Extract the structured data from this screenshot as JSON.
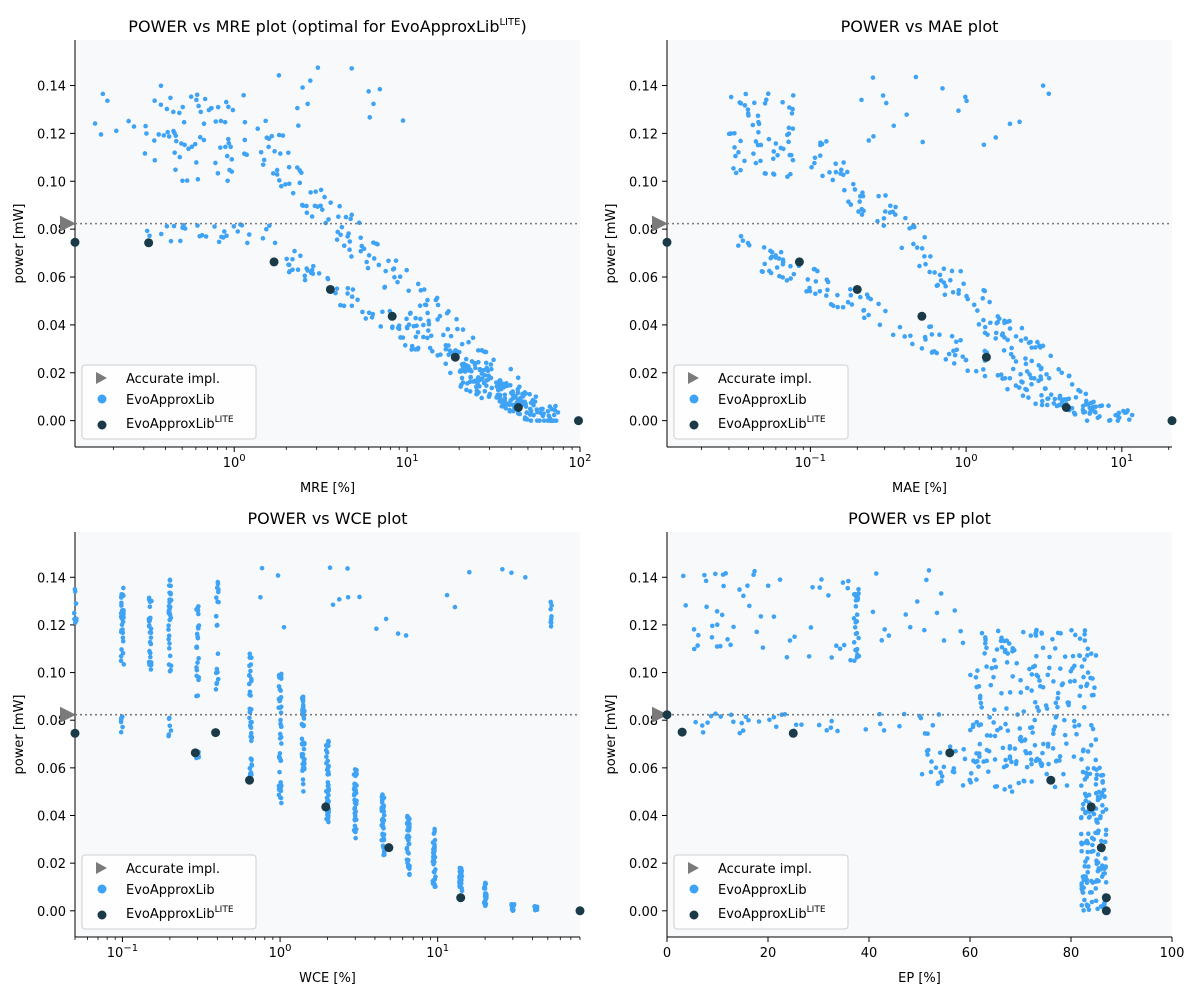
{
  "figure": {
    "rows": 2,
    "cols": 2
  },
  "colors": {
    "evo": "#3ea3f5",
    "lite": "#1a3a48",
    "accurate": "#7a7a7a",
    "panel_bg": "#f7f9fb",
    "refline": "#7a7a7a"
  },
  "chart_data": [
    {
      "id": "mre",
      "type": "scatter",
      "title": "POWER vs MRE plot (optimal for EvoApproxLib",
      "title_sup": "LITE",
      "title_end": ")",
      "xlabel": "MRE [%]",
      "ylabel": "power [mW]",
      "xscale": "log",
      "xlim": [
        0.12,
        100
      ],
      "ylim": [
        -0.011,
        0.159
      ],
      "xticks": [
        {
          "v": 1,
          "b": "10",
          "e": "0"
        },
        {
          "v": 10,
          "b": "10",
          "e": "1"
        },
        {
          "v": 100,
          "b": "10",
          "e": "2"
        }
      ],
      "yticks": [
        "0.00",
        "0.02",
        "0.04",
        "0.06",
        "0.08",
        "0.10",
        "0.12",
        "0.14"
      ],
      "accurate_power": 0.0823,
      "lite_points": [
        [
          0.12,
          0.0745
        ],
        [
          0.32,
          0.0743
        ],
        [
          1.7,
          0.0663
        ],
        [
          3.6,
          0.0548
        ],
        [
          8.2,
          0.0436
        ],
        [
          19,
          0.0265
        ],
        [
          44,
          0.0055
        ],
        [
          98,
          0.0
        ]
      ],
      "evo_clusters": [
        {
          "n": 20,
          "x": [
            0.13,
            0.7
          ],
          "y": [
            0.11,
            0.14
          ]
        },
        {
          "n": 60,
          "x": [
            0.3,
            1.6
          ],
          "y": [
            0.1,
            0.136
          ]
        },
        {
          "n": 15,
          "x": [
            1.5,
            11
          ],
          "y": [
            0.115,
            0.148
          ]
        },
        {
          "n": 30,
          "x": [
            0.3,
            1.8
          ],
          "y": [
            0.074,
            0.082
          ]
        },
        {
          "n": 160,
          "trend": true,
          "x": [
            1.4,
            60
          ],
          "y0": 0.115,
          "y1": 0.0,
          "jit": 0.009
        },
        {
          "n": 110,
          "trend": true,
          "x": [
            2,
            50
          ],
          "y0": 0.068,
          "y1": 0.005,
          "jit": 0.006
        },
        {
          "n": 120,
          "trend": true,
          "x": [
            20,
            75
          ],
          "y0": 0.02,
          "y1": 0.0,
          "jit": 0.006
        }
      ],
      "legend": {
        "accurate": "Accurate impl.",
        "evo": "EvoApproxLib",
        "lite": "EvoApproxLib",
        "lite_sup": "LITE"
      }
    },
    {
      "id": "mae",
      "type": "scatter",
      "title": "POWER vs MAE plot",
      "title_sup": "",
      "title_end": "",
      "xlabel": "MAE [%]",
      "ylabel": "power [mW]",
      "xscale": "log",
      "xlim": [
        0.012,
        21
      ],
      "ylim": [
        -0.011,
        0.159
      ],
      "xticks": [
        {
          "v": 0.1,
          "b": "10",
          "e": "−1"
        },
        {
          "v": 1,
          "b": "10",
          "e": "0"
        },
        {
          "v": 10,
          "b": "10",
          "e": "1"
        }
      ],
      "yticks": [
        "0.00",
        "0.02",
        "0.04",
        "0.06",
        "0.08",
        "0.10",
        "0.12",
        "0.14"
      ],
      "accurate_power": 0.0823,
      "lite_points": [
        [
          0.012,
          0.0745
        ],
        [
          0.085,
          0.0663
        ],
        [
          0.2,
          0.0548
        ],
        [
          0.52,
          0.0436
        ],
        [
          1.35,
          0.0265
        ],
        [
          4.4,
          0.0055
        ],
        [
          21,
          0.0
        ]
      ],
      "evo_clusters": [
        {
          "n": 60,
          "x": [
            0.03,
            0.08
          ],
          "y": [
            0.1,
            0.138
          ]
        },
        {
          "n": 20,
          "x": [
            0.2,
            4
          ],
          "y": [
            0.115,
            0.146
          ]
        },
        {
          "n": 150,
          "trend": true,
          "x": [
            0.1,
            6
          ],
          "y0": 0.115,
          "y1": 0.005,
          "jit": 0.009
        },
        {
          "n": 120,
          "trend": true,
          "x": [
            0.03,
            3
          ],
          "y0": 0.075,
          "y1": 0.012,
          "jit": 0.006
        },
        {
          "n": 60,
          "trend": true,
          "x": [
            3,
            12
          ],
          "y0": 0.01,
          "y1": 0.0,
          "jit": 0.004
        }
      ],
      "legend": {
        "accurate": "Accurate impl.",
        "evo": "EvoApproxLib",
        "lite": "EvoApproxLib",
        "lite_sup": "LITE"
      }
    },
    {
      "id": "wce",
      "type": "scatter",
      "title": "POWER vs WCE plot",
      "title_sup": "",
      "title_end": "",
      "xlabel": "WCE [%]",
      "ylabel": "power [mW]",
      "xscale": "log",
      "xlim": [
        0.05,
        80
      ],
      "ylim": [
        -0.011,
        0.159
      ],
      "xticks": [
        {
          "v": 0.1,
          "b": "10",
          "e": "−1"
        },
        {
          "v": 1,
          "b": "10",
          "e": "0"
        },
        {
          "v": 10,
          "b": "10",
          "e": "1"
        }
      ],
      "yticks": [
        "0.00",
        "0.02",
        "0.04",
        "0.06",
        "0.08",
        "0.10",
        "0.12",
        "0.14"
      ],
      "accurate_power": 0.0823,
      "lite_points": [
        [
          0.05,
          0.0745
        ],
        [
          0.29,
          0.0663
        ],
        [
          0.39,
          0.0748
        ],
        [
          0.64,
          0.0548
        ],
        [
          1.95,
          0.0436
        ],
        [
          4.9,
          0.0265
        ],
        [
          14,
          0.0055
        ],
        [
          80,
          0.0
        ]
      ],
      "evo_columns": [
        {
          "x": 0.05,
          "y": [
            0.118,
            0.135
          ],
          "n": 8
        },
        {
          "x": 0.1,
          "y": [
            0.1,
            0.137
          ],
          "n": 30
        },
        {
          "x": 0.15,
          "y": [
            0.1,
            0.136
          ],
          "n": 30
        },
        {
          "x": 0.2,
          "y": [
            0.1,
            0.139
          ],
          "n": 30
        },
        {
          "x": 0.3,
          "y": [
            0.09,
            0.128
          ],
          "n": 25
        },
        {
          "x": 0.4,
          "y": [
            0.09,
            0.138
          ],
          "n": 20
        },
        {
          "x": 0.65,
          "y": [
            0.055,
            0.11
          ],
          "n": 40
        },
        {
          "x": 1,
          "y": [
            0.045,
            0.1
          ],
          "n": 45
        },
        {
          "x": 1.4,
          "y": [
            0.05,
            0.09
          ],
          "n": 45
        },
        {
          "x": 2,
          "y": [
            0.035,
            0.075
          ],
          "n": 45
        },
        {
          "x": 3,
          "y": [
            0.03,
            0.06
          ],
          "n": 40
        },
        {
          "x": 4.5,
          "y": [
            0.022,
            0.05
          ],
          "n": 40
        },
        {
          "x": 6.5,
          "y": [
            0.015,
            0.04
          ],
          "n": 40
        },
        {
          "x": 9.5,
          "y": [
            0.01,
            0.035
          ],
          "n": 40
        },
        {
          "x": 14,
          "y": [
            0.005,
            0.018
          ],
          "n": 35
        },
        {
          "x": 20,
          "y": [
            0.002,
            0.012
          ],
          "n": 30
        },
        {
          "x": 30,
          "y": [
            0.0,
            0.003
          ],
          "n": 15
        },
        {
          "x": 42,
          "y": [
            0.0,
            0.002
          ],
          "n": 8
        },
        {
          "x": 0.1,
          "y": [
            0.074,
            0.082
          ],
          "n": 6
        },
        {
          "x": 0.2,
          "y": [
            0.07,
            0.082
          ],
          "n": 6
        },
        {
          "x": 0.3,
          "y": [
            0.064,
            0.072
          ],
          "n": 5
        }
      ],
      "evo_clusters": [
        {
          "n": 20,
          "x": [
            0.7,
            40
          ],
          "y": [
            0.115,
            0.148
          ]
        },
        {
          "n": 8,
          "x": [
            52,
            53
          ],
          "y": [
            0.115,
            0.133
          ]
        }
      ],
      "legend": {
        "accurate": "Accurate impl.",
        "evo": "EvoApproxLib",
        "lite": "EvoApproxLib",
        "lite_sup": "LITE"
      }
    },
    {
      "id": "ep",
      "type": "scatter",
      "title": "POWER vs EP plot",
      "title_sup": "",
      "title_end": "",
      "xlabel": "EP [%]",
      "ylabel": "power [mW]",
      "xscale": "linear",
      "xlim": [
        0,
        100
      ],
      "ylim": [
        -0.011,
        0.159
      ],
      "xticks": [
        {
          "v": 0,
          "t": "0"
        },
        {
          "v": 20,
          "t": "20"
        },
        {
          "v": 40,
          "t": "40"
        },
        {
          "v": 60,
          "t": "60"
        },
        {
          "v": 80,
          "t": "80"
        },
        {
          "v": 100,
          "t": "100"
        }
      ],
      "yticks": [
        "0.00",
        "0.02",
        "0.04",
        "0.06",
        "0.08",
        "0.10",
        "0.12",
        "0.14"
      ],
      "accurate_power": 0.0823,
      "lite_points": [
        [
          0,
          0.0823
        ],
        [
          3,
          0.075
        ],
        [
          25,
          0.0745
        ],
        [
          56,
          0.0663
        ],
        [
          76,
          0.0548
        ],
        [
          84,
          0.0436
        ],
        [
          86,
          0.0265
        ],
        [
          87,
          0.0055
        ],
        [
          87,
          0.0
        ]
      ],
      "evo_clusters": [
        {
          "n": 70,
          "x": [
            0,
            60
          ],
          "y": [
            0.105,
            0.143
          ]
        },
        {
          "n": 25,
          "x": [
            37,
            38
          ],
          "y": [
            0.1,
            0.137
          ]
        },
        {
          "n": 200,
          "x": [
            60,
            85
          ],
          "y": [
            0.06,
            0.118
          ]
        },
        {
          "n": 40,
          "x": [
            5,
            55
          ],
          "y": [
            0.074,
            0.083
          ]
        },
        {
          "n": 60,
          "x": [
            50,
            80
          ],
          "y": [
            0.05,
            0.07
          ]
        },
        {
          "n": 140,
          "x": [
            82,
            87
          ],
          "y": [
            0.0,
            0.06
          ]
        }
      ],
      "legend": {
        "accurate": "Accurate impl.",
        "evo": "EvoApproxLib",
        "lite": "EvoApproxLib",
        "lite_sup": "LITE"
      }
    }
  ]
}
